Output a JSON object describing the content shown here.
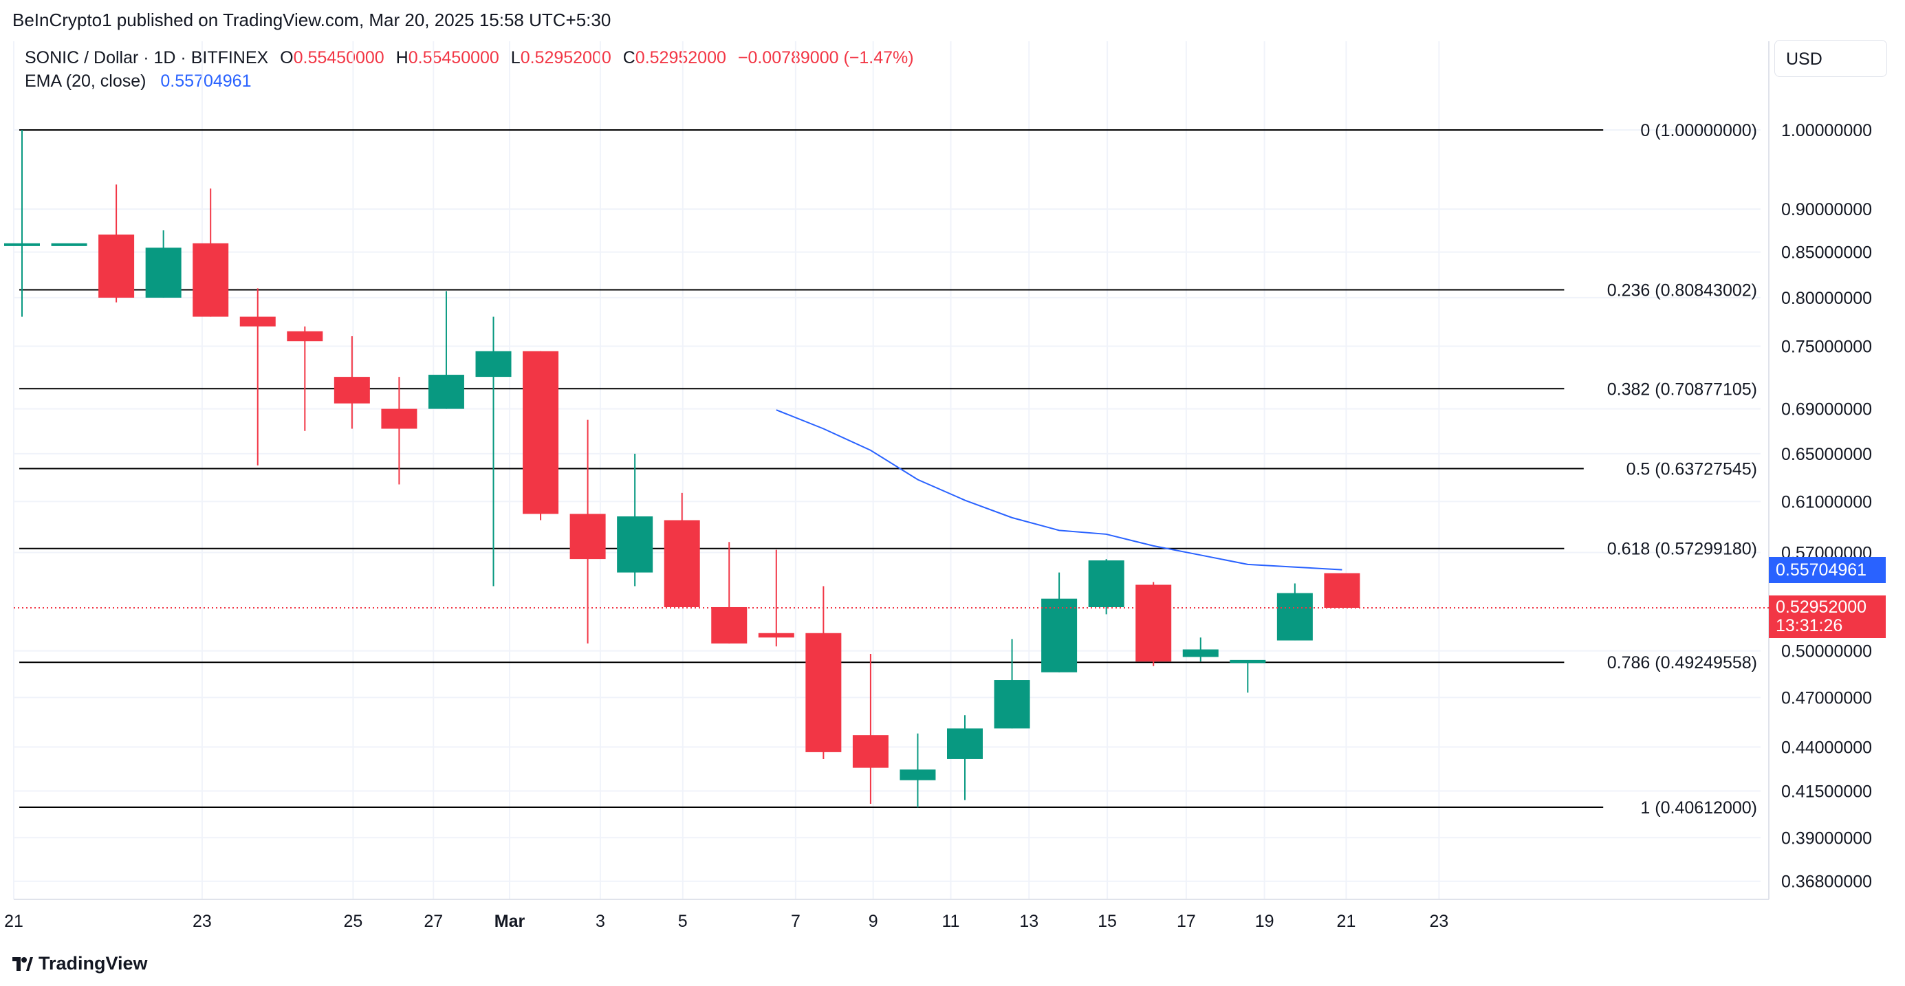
{
  "header": {
    "published": "BeInCrypto1 published on TradingView.com, Mar 20, 2025 15:58 UTC+5:30",
    "symbol": "SONIC / Dollar · 1D · BITFINEX",
    "open_label": "O",
    "open": "0.55450000",
    "high_label": "H",
    "high": "0.55450000",
    "low_label": "L",
    "low": "0.52952000",
    "close_label": "C",
    "close": "0.52952000",
    "change": "−0.00789000 (−1.47%)",
    "ema_label": "EMA (20, close)",
    "ema_value": "0.55704961"
  },
  "currency": "USD",
  "footer": {
    "brand": "TradingView"
  },
  "colors": {
    "up": "#089981",
    "down": "#f23645",
    "ema": "#2962ff",
    "fib": "#000000",
    "grid": "#f0f3fa"
  },
  "price_tags": {
    "ema": "0.55704961",
    "last": "0.52952000",
    "countdown": "13:31:26"
  },
  "chart_data": {
    "type": "candlestick",
    "y_scale": "log",
    "ylim": [
      0.355,
      1.08
    ],
    "x_ticks": [
      "21",
      "23",
      "25",
      "27",
      "Mar",
      "3",
      "5",
      "7",
      "9",
      "11",
      "13",
      "15",
      "17",
      "19",
      "21",
      "23"
    ],
    "y_ticks": [
      "1.00000000",
      "0.90000000",
      "0.85000000",
      "0.80000000",
      "0.75000000",
      "0.69000000",
      "0.65000000",
      "0.61000000",
      "0.57000000",
      "0.50000000",
      "0.47000000",
      "0.44000000",
      "0.41500000",
      "0.39000000",
      "0.36800000"
    ],
    "fib_levels": [
      {
        "ratio": "0",
        "price": 1.0,
        "label": "0 (1.00000000)"
      },
      {
        "ratio": "0.236",
        "price": 0.80843002,
        "label": "0.236 (0.80843002)"
      },
      {
        "ratio": "0.382",
        "price": 0.70877105,
        "label": "0.382 (0.70877105)"
      },
      {
        "ratio": "0.5",
        "price": 0.63727545,
        "label": "0.5 (0.63727545)"
      },
      {
        "ratio": "0.618",
        "price": 0.5729918,
        "label": "0.618 (0.57299180)"
      },
      {
        "ratio": "0.786",
        "price": 0.49249558,
        "label": "0.786 (0.49249558)"
      },
      {
        "ratio": "1",
        "price": 0.40612,
        "label": "1 (0.40612000)"
      }
    ],
    "candles": [
      {
        "date": "Feb 21",
        "o": 0.86,
        "h": 1.0,
        "l": 0.78,
        "c": 0.86
      },
      {
        "date": "Feb 22",
        "o": 0.86,
        "h": 0.86,
        "l": 0.86,
        "c": 0.86
      },
      {
        "date": "Feb 23a",
        "o": 0.87,
        "h": 0.93,
        "l": 0.795,
        "c": 0.8
      },
      {
        "date": "Feb 23",
        "o": 0.8,
        "h": 0.875,
        "l": 0.8,
        "c": 0.855
      },
      {
        "date": "Feb 24",
        "o": 0.86,
        "h": 0.925,
        "l": 0.78,
        "c": 0.78
      },
      {
        "date": "Feb 25",
        "o": 0.78,
        "h": 0.81,
        "l": 0.64,
        "c": 0.77
      },
      {
        "date": "Feb 26",
        "o": 0.765,
        "h": 0.77,
        "l": 0.67,
        "c": 0.755
      },
      {
        "date": "Feb 27",
        "o": 0.72,
        "h": 0.76,
        "l": 0.672,
        "c": 0.695
      },
      {
        "date": "Feb 28",
        "o": 0.69,
        "h": 0.72,
        "l": 0.624,
        "c": 0.672
      },
      {
        "date": "Mar 1",
        "o": 0.69,
        "h": 0.807,
        "l": 0.69,
        "c": 0.722
      },
      {
        "date": "Mar 2",
        "o": 0.72,
        "h": 0.78,
        "l": 0.545,
        "c": 0.745
      },
      {
        "date": "Mar 3",
        "o": 0.745,
        "h": 0.745,
        "l": 0.595,
        "c": 0.6
      },
      {
        "date": "Mar 4",
        "o": 0.6,
        "h": 0.68,
        "l": 0.505,
        "c": 0.565
      },
      {
        "date": "Mar 5",
        "o": 0.555,
        "h": 0.65,
        "l": 0.545,
        "c": 0.598
      },
      {
        "date": "Mar 6",
        "o": 0.595,
        "h": 0.617,
        "l": 0.53,
        "c": 0.53
      },
      {
        "date": "Mar 7",
        "o": 0.53,
        "h": 0.578,
        "l": 0.505,
        "c": 0.505
      },
      {
        "date": "Mar 8",
        "o": 0.512,
        "h": 0.572,
        "l": 0.503,
        "c": 0.509
      },
      {
        "date": "Mar 9",
        "o": 0.512,
        "h": 0.545,
        "l": 0.433,
        "c": 0.437
      },
      {
        "date": "Mar 10",
        "o": 0.447,
        "h": 0.498,
        "l": 0.408,
        "c": 0.428
      },
      {
        "date": "Mar 11",
        "o": 0.421,
        "h": 0.448,
        "l": 0.406,
        "c": 0.427
      },
      {
        "date": "Mar 12",
        "o": 0.433,
        "h": 0.459,
        "l": 0.41,
        "c": 0.451
      },
      {
        "date": "Mar 13",
        "o": 0.451,
        "h": 0.508,
        "l": 0.451,
        "c": 0.481
      },
      {
        "date": "Mar 14",
        "o": 0.486,
        "h": 0.555,
        "l": 0.486,
        "c": 0.536
      },
      {
        "date": "Mar 15",
        "o": 0.53,
        "h": 0.565,
        "l": 0.525,
        "c": 0.564
      },
      {
        "date": "Mar 16",
        "o": 0.546,
        "h": 0.548,
        "l": 0.49,
        "c": 0.493
      },
      {
        "date": "Mar 17",
        "o": 0.496,
        "h": 0.509,
        "l": 0.493,
        "c": 0.501
      },
      {
        "date": "Mar 18",
        "o": 0.492,
        "h": 0.493,
        "l": 0.473,
        "c": 0.494
      },
      {
        "date": "Mar 19",
        "o": 0.507,
        "h": 0.547,
        "l": 0.507,
        "c": 0.54
      },
      {
        "date": "Mar 20",
        "o": 0.5545,
        "h": 0.5545,
        "l": 0.52952,
        "c": 0.52952
      }
    ],
    "ema": {
      "name": "EMA (20, close)",
      "points": [
        {
          "date": "Mar 8",
          "v": 0.689
        },
        {
          "date": "Mar 9",
          "v": 0.672
        },
        {
          "date": "Mar 10",
          "v": 0.653
        },
        {
          "date": "Mar 11",
          "v": 0.628
        },
        {
          "date": "Mar 12",
          "v": 0.611
        },
        {
          "date": "Mar 13",
          "v": 0.597
        },
        {
          "date": "Mar 14",
          "v": 0.587
        },
        {
          "date": "Mar 15",
          "v": 0.584
        },
        {
          "date": "Mar 16",
          "v": 0.575
        },
        {
          "date": "Mar 17",
          "v": 0.568
        },
        {
          "date": "Mar 18",
          "v": 0.561
        },
        {
          "date": "Mar 19",
          "v": 0.559
        },
        {
          "date": "Mar 20",
          "v": 0.55705
        }
      ]
    },
    "last_price": 0.52952
  }
}
